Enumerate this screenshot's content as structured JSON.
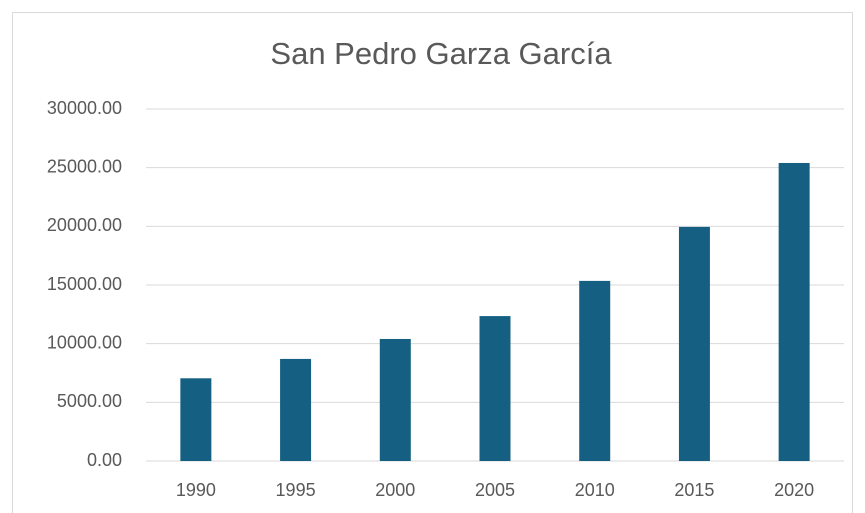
{
  "chart_data": {
    "type": "bar",
    "title": "San Pedro Garza García",
    "categories": [
      "1990",
      "1995",
      "2000",
      "2005",
      "2010",
      "2015",
      "2020"
    ],
    "values": [
      7050,
      8700,
      10400,
      12350,
      15350,
      19950,
      25400
    ],
    "color": "#156082",
    "ylim": [
      0,
      30000
    ],
    "yticks": [
      {
        "value": 0,
        "label": "0.00"
      },
      {
        "value": 5000,
        "label": "5000.00"
      },
      {
        "value": 10000,
        "label": "10000.00"
      },
      {
        "value": 15000,
        "label": "15000.00"
      },
      {
        "value": 20000,
        "label": "20000.00"
      },
      {
        "value": 25000,
        "label": "25000.00"
      },
      {
        "value": 30000,
        "label": "30000.00"
      }
    ],
    "grid": true
  }
}
